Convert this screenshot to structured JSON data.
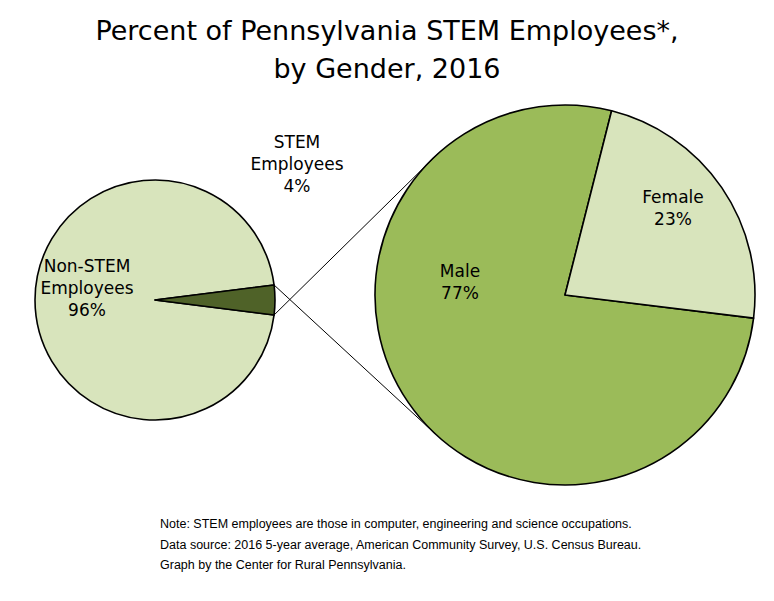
{
  "title": [
    "Percent of Pennsylvania STEM Employees*,",
    "by Gender, 2016"
  ],
  "note": [
    "Note: STEM employees are those in computer, engineering and science occupations.",
    "Data source: 2016 5-year average, American Community Survey, U.S. Census Bureau.",
    "Graph by the Center for Rural Pennsylvania."
  ],
  "chart_data": [
    {
      "type": "pie",
      "categories": [
        "Non-STEM Employees",
        "STEM Employees"
      ],
      "values": [
        96,
        4
      ],
      "value_labels": [
        "96%",
        "4%"
      ],
      "data_labels": true,
      "colors": [
        "#d8e4bc",
        "#4f6228"
      ]
    },
    {
      "type": "pie",
      "categories": [
        "Male",
        "Female"
      ],
      "values": [
        77,
        23
      ],
      "value_labels": [
        "77%",
        "23%"
      ],
      "data_labels": true,
      "colors": [
        "#9bbb59",
        "#d8e4bc"
      ]
    }
  ]
}
